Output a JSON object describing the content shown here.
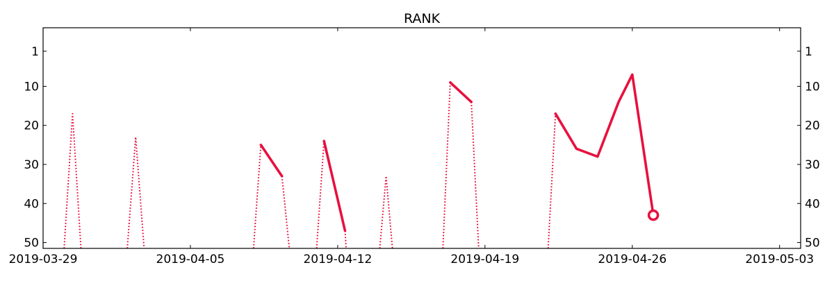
{
  "chart_data": {
    "type": "line",
    "title": "RANK",
    "xlabel": "",
    "ylabel": "",
    "x_axis": {
      "type": "date",
      "range": [
        "2019-03-29",
        "2019-05-04"
      ],
      "tick_labels": [
        "2019-03-29",
        "2019-04-05",
        "2019-04-12",
        "2019-04-19",
        "2019-04-26",
        "2019-05-03"
      ]
    },
    "y_axis": {
      "inverted": true,
      "range": [
        51.5,
        -5
      ],
      "tick_labels": [
        "1",
        "10",
        "20",
        "30",
        "40",
        "50"
      ],
      "mirrored_right": true
    },
    "grid": false,
    "legend": "none",
    "color": "#e8103e",
    "series": [
      {
        "style": "dotted",
        "points": [
          [
            "2019-03-30",
            51.5
          ],
          [
            "2019-03-30.4",
            17
          ],
          [
            "2019-03-30.8",
            51.5
          ]
        ]
      },
      {
        "style": "dotted",
        "points": [
          [
            "2019-04-02",
            51.5
          ],
          [
            "2019-04-02.4",
            23
          ],
          [
            "2019-04-02.8",
            51.5
          ]
        ]
      },
      {
        "style": "dotted",
        "points": [
          [
            "2019-04-08",
            51.5
          ],
          [
            "2019-04-08.35",
            25
          ]
        ]
      },
      {
        "style": "solid",
        "points": [
          [
            "2019-04-08.35",
            25
          ],
          [
            "2019-04-09.35",
            33
          ]
        ]
      },
      {
        "style": "dotted",
        "points": [
          [
            "2019-04-09.35",
            33
          ],
          [
            "2019-04-09.7",
            51.5
          ]
        ]
      },
      {
        "style": "dotted",
        "points": [
          [
            "2019-04-11",
            51.5
          ],
          [
            "2019-04-11.35",
            24
          ]
        ]
      },
      {
        "style": "solid",
        "points": [
          [
            "2019-04-11.35",
            24
          ],
          [
            "2019-04-12.35",
            47
          ]
        ]
      },
      {
        "style": "dotted",
        "points": [
          [
            "2019-04-12.35",
            47
          ],
          [
            "2019-04-12.4",
            51.5
          ]
        ]
      },
      {
        "style": "dotted",
        "points": [
          [
            "2019-04-14",
            51.5
          ],
          [
            "2019-04-14.3",
            33
          ],
          [
            "2019-04-14.6",
            51.5
          ]
        ]
      },
      {
        "style": "dotted",
        "points": [
          [
            "2019-04-17",
            51.5
          ],
          [
            "2019-04-17.35",
            9
          ]
        ]
      },
      {
        "style": "solid",
        "points": [
          [
            "2019-04-17.35",
            9
          ],
          [
            "2019-04-18.35",
            14
          ]
        ]
      },
      {
        "style": "dotted",
        "points": [
          [
            "2019-04-18.35",
            14
          ],
          [
            "2019-04-18.7",
            51.5
          ]
        ]
      },
      {
        "style": "dotted",
        "points": [
          [
            "2019-04-22",
            51.5
          ],
          [
            "2019-04-22.35",
            17
          ]
        ]
      },
      {
        "style": "solid",
        "points": [
          [
            "2019-04-22.35",
            17
          ],
          [
            "2019-04-23.35",
            26
          ],
          [
            "2019-04-24.35",
            28
          ],
          [
            "2019-04-25.35",
            14
          ],
          [
            "2019-04-26",
            7
          ],
          [
            "2019-04-27",
            43
          ]
        ]
      }
    ],
    "end_marker": {
      "x": "2019-04-27",
      "y": 43,
      "shape": "open-circle"
    }
  }
}
